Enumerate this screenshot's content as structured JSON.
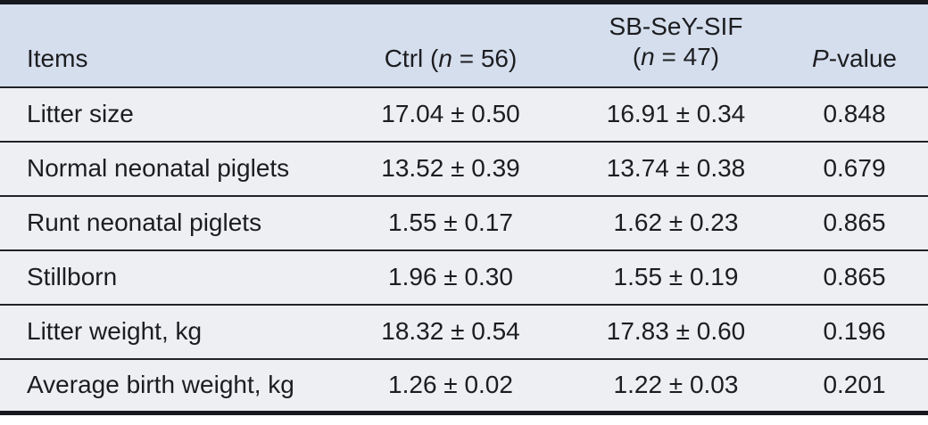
{
  "table": {
    "description": "Reproductive performance table comparing control and SB-SeY-SIF sow groups",
    "colors": {
      "header_background": "#d5deed",
      "row_background": "#edeff3",
      "thick_border": "#17191e",
      "row_separator": "#202227",
      "text": "#1c1d20"
    },
    "columns": {
      "items": {
        "label": "Items"
      },
      "ctrl": {
        "pre": "Ctrl (",
        "italic": "n",
        "post": " = 56)"
      },
      "treatment": {
        "line1": "SB-SeY-SIF",
        "pre": "(",
        "italic": "n",
        "post": " = 47)"
      },
      "pvalue": {
        "italic": "P",
        "post": "-value"
      }
    },
    "rows": [
      {
        "item": "Litter size",
        "ctrl": "17.04 ± 0.50",
        "treatment": "16.91 ± 0.34",
        "pvalue": "0.848"
      },
      {
        "item": "Normal neonatal piglets",
        "ctrl": "13.52 ± 0.39",
        "treatment": "13.74 ± 0.38",
        "pvalue": "0.679"
      },
      {
        "item": "Runt neonatal piglets",
        "ctrl": "1.55 ± 0.17",
        "treatment": "1.62 ± 0.23",
        "pvalue": "0.865"
      },
      {
        "item": "Stillborn",
        "ctrl": "1.96 ± 0.30",
        "treatment": "1.55 ± 0.19",
        "pvalue": "0.865"
      },
      {
        "item": "Litter weight, kg",
        "ctrl": "18.32 ± 0.54",
        "treatment": "17.83 ± 0.60",
        "pvalue": "0.196"
      },
      {
        "item": "Average birth weight, kg",
        "ctrl": "1.26 ± 0.02",
        "treatment": "1.22 ± 0.03",
        "pvalue": "0.201"
      }
    ]
  }
}
